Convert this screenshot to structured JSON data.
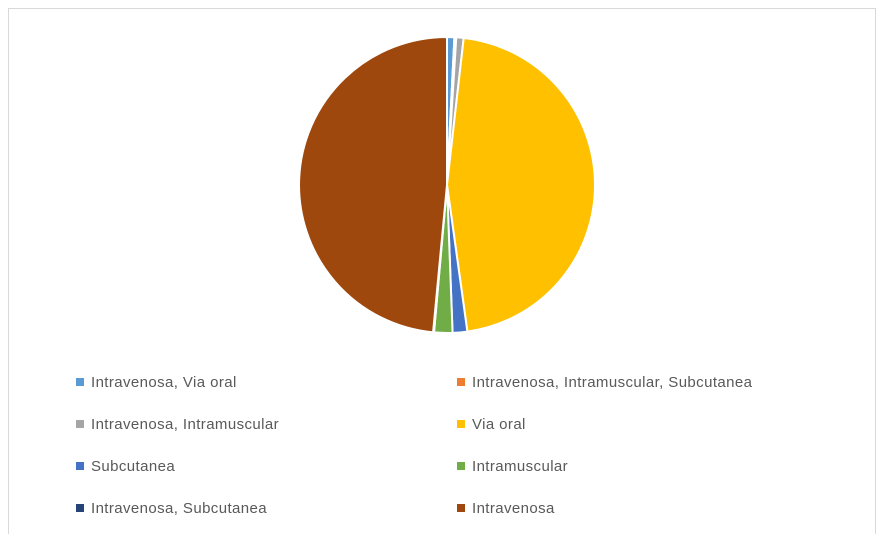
{
  "chart_data": {
    "type": "pie",
    "title": "",
    "legend_position": "bottom",
    "start_angle_deg": 0,
    "direction": "clockwise",
    "slices": [
      {
        "label": "Intravenosa, Via oral",
        "value": 0.8,
        "color": "#5B9BD5"
      },
      {
        "label": "Intravenosa, Intramuscular, Subcutanea",
        "value": 0.2,
        "color": "#ED7D31"
      },
      {
        "label": "Intravenosa, Intramuscular",
        "value": 0.8,
        "color": "#A5A5A5"
      },
      {
        "label": "Via oral",
        "value": 46.0,
        "color": "#FFC000"
      },
      {
        "label": "Subcutanea",
        "value": 1.6,
        "color": "#4472C4"
      },
      {
        "label": "Intramuscular",
        "value": 2.0,
        "color": "#70AD47"
      },
      {
        "label": "Intravenosa, Subcutanea",
        "value": 0.1,
        "color": "#264478"
      },
      {
        "label": "Intravenosa",
        "value": 48.5,
        "color": "#9E480E"
      }
    ]
  }
}
